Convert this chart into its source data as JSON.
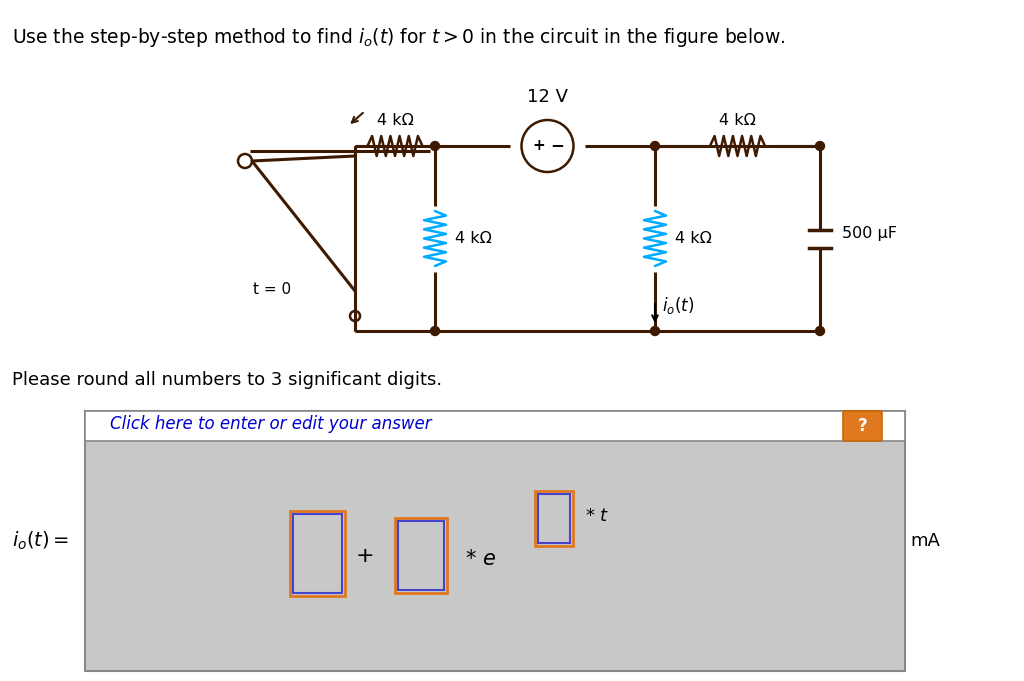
{
  "title_text": "Use the step-by-step method to find $i_o(t)$ for $t > 0$ in the circuit in the figure below.",
  "subtitle_text": "Please round all numbers to 3 significant digits.",
  "bg_color": "#ffffff",
  "circuit_wire_color": "#3d1a00",
  "resistor_color_brown": "#3d1a00",
  "resistor_color_blue": "#00aaff",
  "answer_box_bg": "#c8c8c8",
  "answer_header_bg": "#ffffff",
  "answer_box_border": "#888888",
  "orange_box_color": "#e07820",
  "blue_box_color": "#4444cc",
  "answer_link_color": "#0000cc",
  "question_mark_bg": "#e07820",
  "voltage_label": "12 V",
  "res1_label": "4 kΩ",
  "res2_label": "4 kΩ",
  "res3_label": "4 kΩ",
  "res4_label": "4 kΩ",
  "cap_label": "500 μF",
  "switch_label": "t = 0",
  "io_label": "$i_o(t)$",
  "io_left_label": "$i_o(t) =$",
  "ma_label": "mA",
  "click_text": "Click here to enter or edit your answer"
}
